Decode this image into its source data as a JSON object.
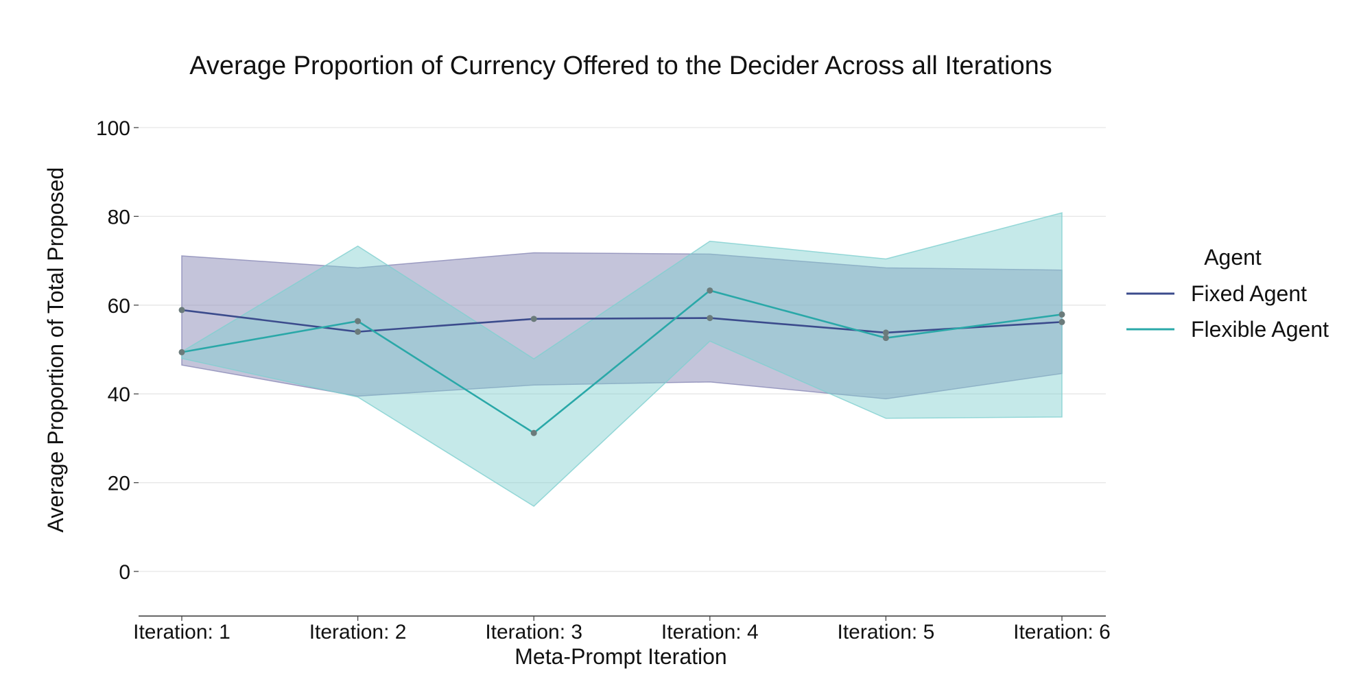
{
  "chart_data": {
    "type": "line",
    "title": "Average Proportion of Currency Offered to the Decider Across all Iterations",
    "xlabel": "Meta-Prompt Iteration",
    "ylabel": "Average Proportion of Total Proposed",
    "categories": [
      "Iteration: 1",
      "Iteration: 2",
      "Iteration: 3",
      "Iteration: 4",
      "Iteration: 5",
      "Iteration: 6"
    ],
    "ylim": [
      -10,
      100
    ],
    "yticks": [
      0,
      20,
      40,
      60,
      80,
      100
    ],
    "grid": "horizontal",
    "legend": {
      "title": "Agent",
      "position": "right"
    },
    "series": [
      {
        "name": "Fixed Agent",
        "color": "#3b4b8c",
        "band_color": "#8a89b6",
        "values": [
          58.9,
          54.0,
          56.9,
          57.1,
          53.8,
          56.2
        ],
        "lower": [
          46.5,
          39.5,
          42.0,
          42.7,
          38.9,
          44.6
        ],
        "upper": [
          71.1,
          68.4,
          71.8,
          71.5,
          68.4,
          67.9
        ]
      },
      {
        "name": "Flexible Agent",
        "color": "#2aa8a8",
        "band_color": "#7fcfcf",
        "values": [
          49.4,
          56.4,
          31.2,
          63.3,
          52.6,
          57.9
        ],
        "lower": [
          48.0,
          39.3,
          14.7,
          51.9,
          34.5,
          34.8
        ],
        "upper": [
          49.5,
          73.3,
          47.9,
          74.4,
          70.4,
          80.8
        ]
      }
    ],
    "marker_color": "#6b7b7b"
  }
}
